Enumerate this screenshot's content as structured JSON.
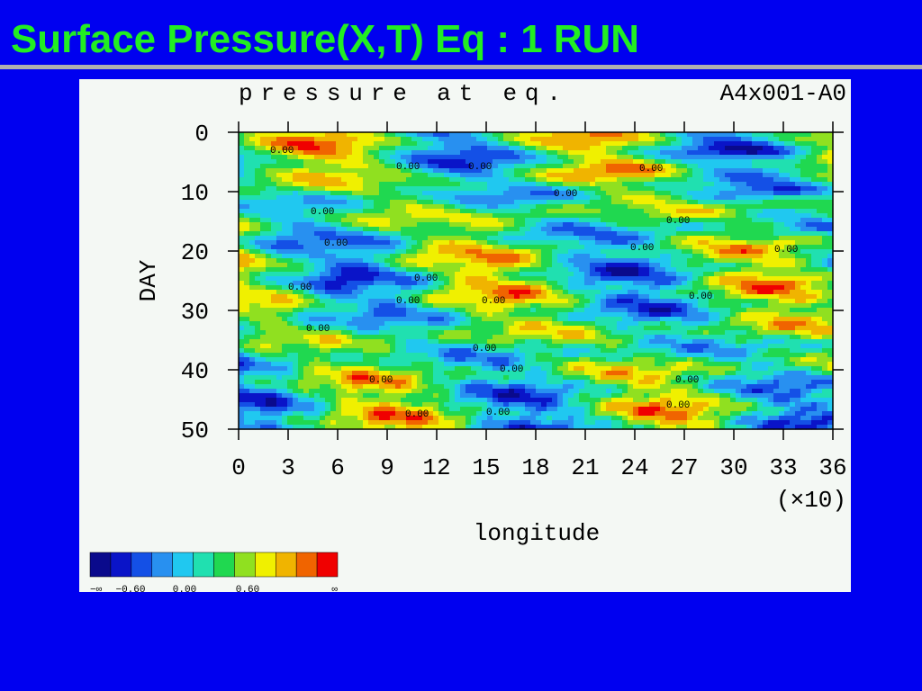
{
  "slide_title": "Surface Pressure(X,T) Eq  : 1 RUN",
  "chart_data": {
    "type": "heatmap",
    "title": "pressure at eq.",
    "run_label": "A4x001-A0",
    "ylabel": "DAY",
    "xlabel": "longitude",
    "x_multiplier": "(×10)",
    "xlim": [
      0,
      36
    ],
    "xticks": [
      0,
      3,
      6,
      9,
      12,
      15,
      18,
      21,
      24,
      27,
      30,
      33,
      36
    ],
    "ylim": [
      50,
      0
    ],
    "yticks": [
      0,
      10,
      20,
      30,
      40,
      50
    ],
    "contour_label": "0.00",
    "colorbar": {
      "colors": [
        "#0a0a8c",
        "#0a14c8",
        "#1450e6",
        "#2890f0",
        "#20c8f0",
        "#20e0b0",
        "#20d850",
        "#90e020",
        "#f0f000",
        "#f0b400",
        "#f06400",
        "#f00000"
      ],
      "labels": [
        "−∞",
        "−0.60",
        "0.00",
        "0.60",
        "∞"
      ]
    }
  }
}
